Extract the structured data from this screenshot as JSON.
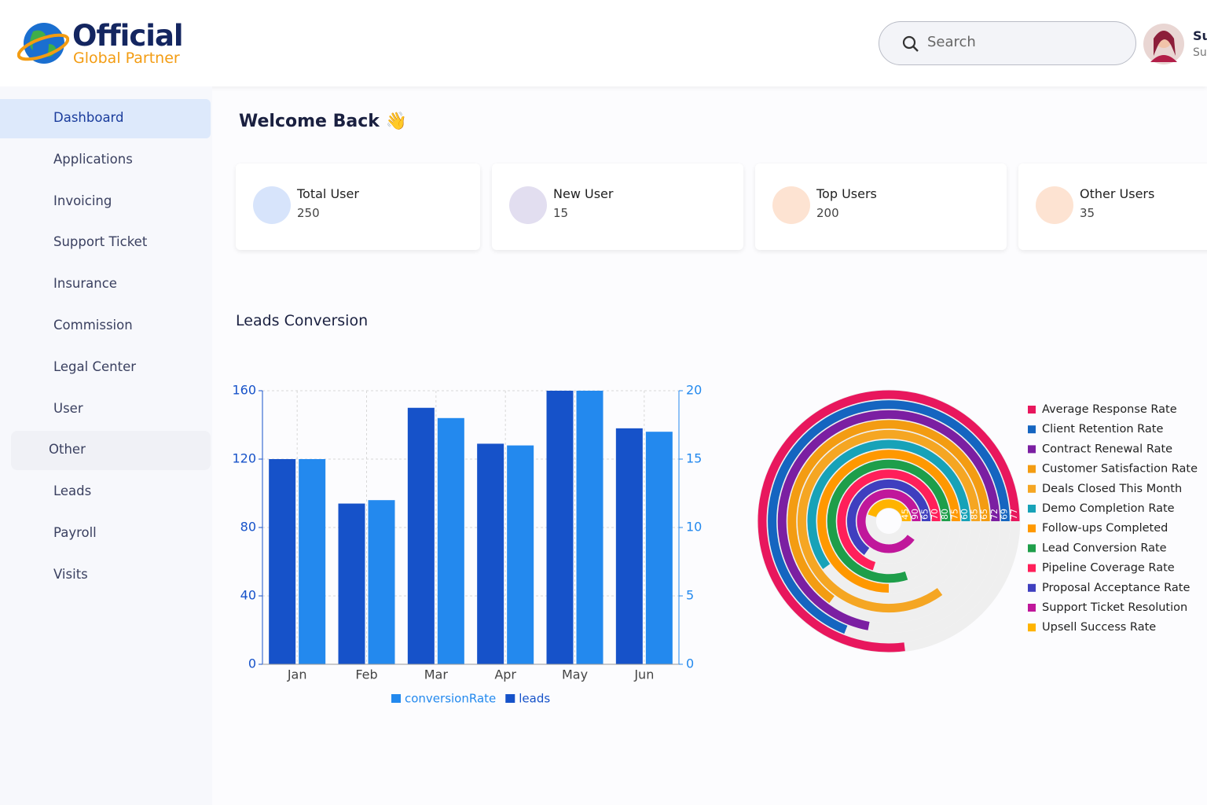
{
  "header": {
    "logo_title": "Official",
    "logo_subtitle": "Global Partner",
    "search_placeholder": "Search",
    "user_name": "Su",
    "user_role": "Su"
  },
  "sidebar": {
    "items": [
      {
        "label": "Dashboard",
        "active": true
      },
      {
        "label": "Applications"
      },
      {
        "label": "Invoicing"
      },
      {
        "label": "Support Ticket"
      },
      {
        "label": "Insurance"
      },
      {
        "label": "Commission",
        "expanded": false
      },
      {
        "label": "Legal Center",
        "expanded": false
      },
      {
        "label": "User",
        "expanded": false
      },
      {
        "label": "Other",
        "expanded": true
      },
      {
        "label": "Leads"
      },
      {
        "label": "Payroll"
      },
      {
        "label": "Visits"
      }
    ]
  },
  "welcome": "Welcome Back 👋",
  "cards": [
    {
      "label": "Total User",
      "value": 250
    },
    {
      "label": "New User",
      "value": 15
    },
    {
      "label": "Top Users",
      "value": 200
    },
    {
      "label": "Other Users",
      "value": 35
    }
  ],
  "section_title": "Leads Conversion",
  "chart_data": [
    {
      "type": "bar",
      "categories": [
        "Jan",
        "Feb",
        "Mar",
        "Apr",
        "May",
        "Jun"
      ],
      "series": [
        {
          "name": "leads",
          "color": "#1652c9",
          "values": [
            120,
            94,
            150,
            129,
            160,
            138
          ]
        },
        {
          "name": "conversionRate",
          "color": "#2389ee",
          "axis": "y2",
          "values": [
            15,
            12,
            18,
            16,
            20,
            17
          ]
        }
      ],
      "ylim": [
        0,
        160
      ],
      "yticks": [
        0,
        40,
        80,
        120,
        160
      ],
      "y2lim": [
        0,
        20
      ],
      "y2ticks": [
        0,
        5,
        10,
        15,
        20
      ],
      "grid": true,
      "legend": "bottom"
    },
    {
      "type": "radialBar",
      "rlim": [
        0,
        100
      ],
      "series": [
        {
          "name": "Average Response Rate",
          "color": "#e8175d",
          "value": 77
        },
        {
          "name": "Client Retention Rate",
          "color": "#1565c0",
          "value": 69
        },
        {
          "name": "Contract Renewal Rate",
          "color": "#7b1fa2",
          "value": 72
        },
        {
          "name": "Customer Satisfaction Rate",
          "color": "#f39c12",
          "value": 65
        },
        {
          "name": "Deals Closed This Month",
          "color": "#f5a623",
          "value": 85
        },
        {
          "name": "Demo Completion Rate",
          "color": "#17a2b8",
          "value": 60
        },
        {
          "name": "Follow-ups Completed",
          "color": "#ff9800",
          "value": 75
        },
        {
          "name": "Lead Conversion Rate",
          "color": "#1e9e4a",
          "value": 80
        },
        {
          "name": "Pipeline Coverage Rate",
          "color": "#ff1f5a",
          "value": 70
        },
        {
          "name": "Proposal Acceptance Rate",
          "color": "#3f3fbf",
          "value": 65
        },
        {
          "name": "Support Ticket Resolution",
          "color": "#c0179b",
          "value": 90
        },
        {
          "name": "Upsell Success Rate",
          "color": "#ffb300",
          "value": 45
        }
      ],
      "legend": "right"
    }
  ]
}
